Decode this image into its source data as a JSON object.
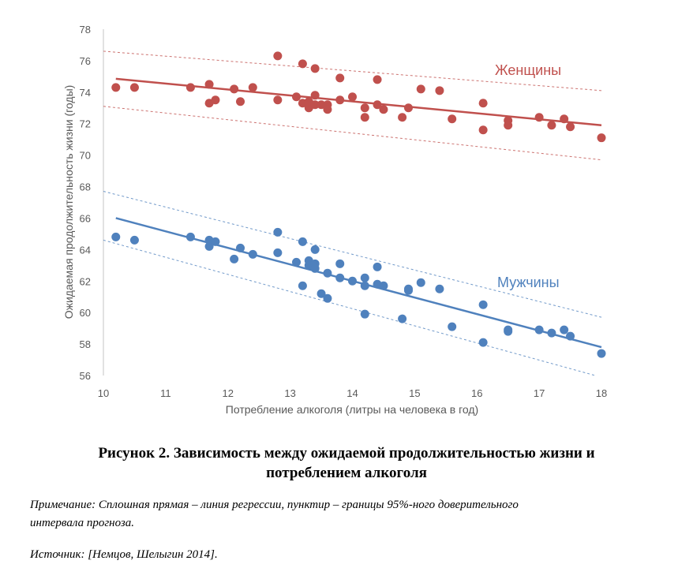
{
  "chart_data": {
    "type": "scatter",
    "title": "",
    "xlabel": "Потребление алкоголя (литры на человека в год)",
    "ylabel": "Ожидаемая продолжительность жизни (годы)",
    "xlim": [
      10,
      18
    ],
    "ylim": [
      56,
      78
    ],
    "xticks": [
      "10",
      "11",
      "12",
      "13",
      "14",
      "15",
      "16",
      "17",
      "18"
    ],
    "yticks": [
      "56",
      "58",
      "60",
      "62",
      "64",
      "66",
      "68",
      "70",
      "72",
      "74",
      "76",
      "78"
    ],
    "grid": false,
    "series": [
      {
        "name": "Женщины",
        "color": "#c0504d",
        "points": [
          [
            10.2,
            74.3
          ],
          [
            10.5,
            74.3
          ],
          [
            11.4,
            74.3
          ],
          [
            11.7,
            74.5
          ],
          [
            11.7,
            73.3
          ],
          [
            11.8,
            73.5
          ],
          [
            12.1,
            74.2
          ],
          [
            12.2,
            73.4
          ],
          [
            12.4,
            74.3
          ],
          [
            12.8,
            76.3
          ],
          [
            12.8,
            73.5
          ],
          [
            13.1,
            73.7
          ],
          [
            13.2,
            75.8
          ],
          [
            13.2,
            73.3
          ],
          [
            13.3,
            73.0
          ],
          [
            13.3,
            73.4
          ],
          [
            13.4,
            75.5
          ],
          [
            13.4,
            73.8
          ],
          [
            13.4,
            73.2
          ],
          [
            13.5,
            73.2
          ],
          [
            13.6,
            73.2
          ],
          [
            13.6,
            72.9
          ],
          [
            13.8,
            74.9
          ],
          [
            13.8,
            73.5
          ],
          [
            14.0,
            73.7
          ],
          [
            14.2,
            73.0
          ],
          [
            14.2,
            72.4
          ],
          [
            14.4,
            74.8
          ],
          [
            14.4,
            73.2
          ],
          [
            14.5,
            72.9
          ],
          [
            14.8,
            72.4
          ],
          [
            14.9,
            73.0
          ],
          [
            15.1,
            74.2
          ],
          [
            15.4,
            74.1
          ],
          [
            15.6,
            72.3
          ],
          [
            16.1,
            73.3
          ],
          [
            16.1,
            71.6
          ],
          [
            16.5,
            72.2
          ],
          [
            16.5,
            71.9
          ],
          [
            17.0,
            72.4
          ],
          [
            17.2,
            71.9
          ],
          [
            17.4,
            72.3
          ],
          [
            17.5,
            71.8
          ],
          [
            18.0,
            71.1
          ]
        ],
        "regression": [
          [
            10.2,
            74.85
          ],
          [
            18,
            71.9
          ]
        ],
        "ci_upper": [
          [
            10,
            76.6
          ],
          [
            18,
            74.1
          ]
        ],
        "ci_lower": [
          [
            10,
            73.1
          ],
          [
            18,
            69.7
          ]
        ]
      },
      {
        "name": "Мужчины",
        "color": "#4f81bd",
        "points": [
          [
            10.2,
            64.8
          ],
          [
            10.5,
            64.6
          ],
          [
            11.4,
            64.8
          ],
          [
            11.7,
            64.6
          ],
          [
            11.7,
            64.2
          ],
          [
            11.8,
            64.5
          ],
          [
            12.1,
            63.4
          ],
          [
            12.2,
            64.1
          ],
          [
            12.4,
            63.7
          ],
          [
            12.8,
            65.1
          ],
          [
            12.8,
            63.8
          ],
          [
            13.1,
            63.2
          ],
          [
            13.2,
            64.5
          ],
          [
            13.2,
            61.7
          ],
          [
            13.3,
            63.3
          ],
          [
            13.3,
            63.0
          ],
          [
            13.4,
            64.0
          ],
          [
            13.4,
            63.1
          ],
          [
            13.4,
            62.8
          ],
          [
            13.5,
            61.2
          ],
          [
            13.6,
            62.5
          ],
          [
            13.6,
            60.9
          ],
          [
            13.8,
            63.1
          ],
          [
            13.8,
            62.2
          ],
          [
            14.0,
            62.0
          ],
          [
            14.2,
            62.2
          ],
          [
            14.2,
            61.7
          ],
          [
            14.2,
            59.9
          ],
          [
            14.4,
            62.9
          ],
          [
            14.4,
            61.8
          ],
          [
            14.5,
            61.7
          ],
          [
            14.8,
            59.6
          ],
          [
            14.9,
            61.5
          ],
          [
            14.9,
            61.4
          ],
          [
            15.1,
            61.9
          ],
          [
            15.4,
            61.5
          ],
          [
            15.6,
            59.1
          ],
          [
            16.1,
            60.5
          ],
          [
            16.1,
            58.1
          ],
          [
            16.5,
            58.9
          ],
          [
            16.5,
            58.8
          ],
          [
            17.0,
            58.9
          ],
          [
            17.2,
            58.7
          ],
          [
            17.4,
            58.9
          ],
          [
            17.5,
            58.5
          ],
          [
            18.0,
            57.4
          ]
        ],
        "regression": [
          [
            10.2,
            66.0
          ],
          [
            18,
            57.8
          ]
        ],
        "ci_upper": [
          [
            10,
            67.7
          ],
          [
            18,
            59.7
          ]
        ],
        "ci_lower": [
          [
            10,
            64.6
          ],
          [
            17.9,
            56.0
          ]
        ]
      }
    ]
  },
  "caption": {
    "line1": "Рисунок 2. Зависимость между ожидаемой продолжительностью жизни и",
    "line2": "потреблением алкоголя"
  },
  "note": {
    "line1": "Примечание: Сплошная прямая – линия регрессии, пунктир – границы 95%-ного доверительного",
    "line2": "интервала прогноза.",
    "source": "Источник: [Немцов, Шелыгин 2014]."
  }
}
